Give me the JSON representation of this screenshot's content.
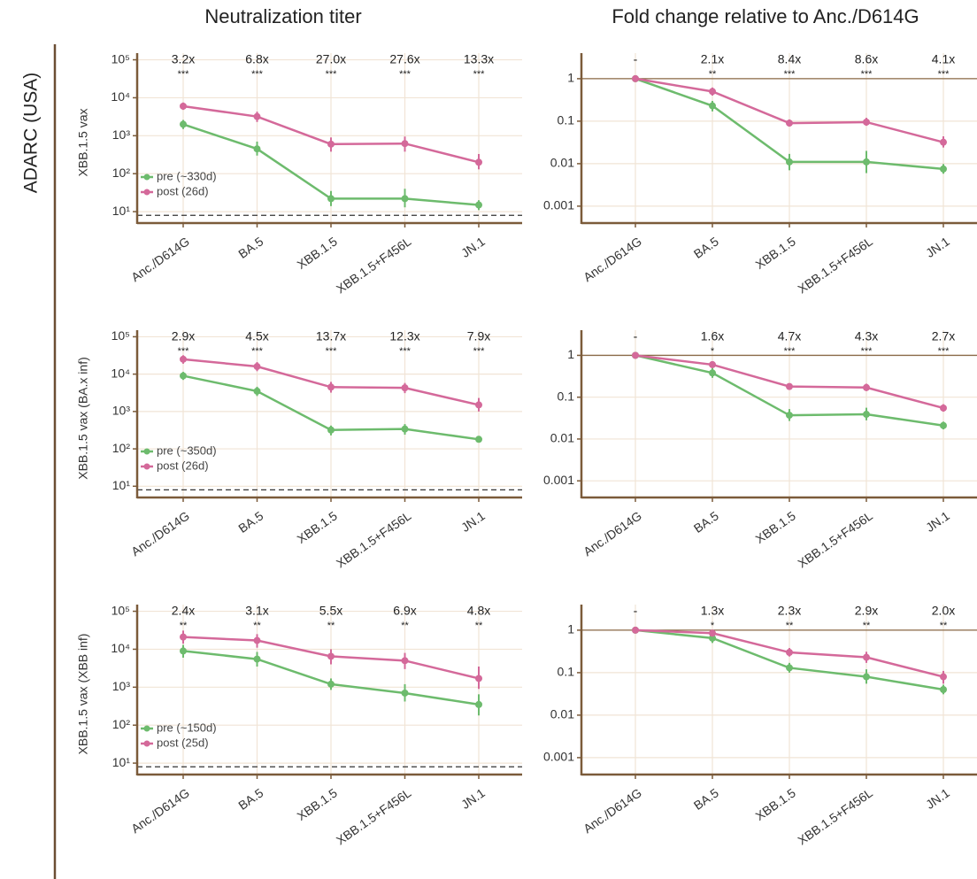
{
  "column_titles": [
    "Neutralization titer",
    "Fold change relative to Anc./D614G"
  ],
  "row_label": "ADARC (USA)",
  "chart_data": [
    {
      "type": "line",
      "y_label": "XBB.1.5 vax",
      "log_scale": true,
      "grid": true,
      "legend": "lower left",
      "categories": [
        "Anc./D614G",
        "BA.5",
        "XBB.1.5",
        "XBB.1.5+F456L",
        "JN.1"
      ],
      "ylim": [
        5,
        150000
      ],
      "yticks": [
        {
          "value": 10,
          "label": "10¹"
        },
        {
          "value": 100,
          "label": "10²"
        },
        {
          "value": 1000,
          "label": "10³"
        },
        {
          "value": 10000,
          "label": "10⁴"
        },
        {
          "value": 100000,
          "label": "10⁵"
        }
      ],
      "reference_line": {
        "value": 8,
        "style": "dashed"
      },
      "annotations": [
        {
          "label": "3.2x",
          "stars": "***"
        },
        {
          "label": "6.8x",
          "stars": "***"
        },
        {
          "label": "27.0x",
          "stars": "***"
        },
        {
          "label": "27.6x",
          "stars": "***"
        },
        {
          "label": "13.3x",
          "stars": "***"
        }
      ],
      "series": [
        {
          "name": "pre (~330d)",
          "color": "#6dbb6d",
          "values": [
            2000,
            450,
            22,
            22,
            15
          ],
          "error_low": [
            1500,
            300,
            14,
            13,
            11
          ],
          "error_high": [
            2600,
            700,
            35,
            40,
            20
          ]
        },
        {
          "name": "post (26d)",
          "color": "#d4699a",
          "values": [
            6000,
            3200,
            600,
            620,
            200
          ],
          "error_low": [
            4800,
            2300,
            380,
            380,
            130
          ],
          "error_high": [
            7500,
            4300,
            900,
            950,
            330
          ]
        }
      ]
    },
    {
      "type": "line",
      "log_scale": true,
      "grid": true,
      "categories": [
        "Anc./D614G",
        "BA.5",
        "XBB.1.5",
        "XBB.1.5+F456L",
        "JN.1"
      ],
      "ylim": [
        0.0004,
        4
      ],
      "yticks": [
        0.001,
        0.01,
        0.1,
        1
      ],
      "reference_line": {
        "value": 1,
        "style": "solid"
      },
      "annotations": [
        {
          "label": "-"
        },
        {
          "label": "2.1x",
          "stars": "**"
        },
        {
          "label": "8.4x",
          "stars": "***"
        },
        {
          "label": "8.6x",
          "stars": "***"
        },
        {
          "label": "4.1x",
          "stars": "***"
        }
      ],
      "series": [
        {
          "color": "#6dbb6d",
          "values": [
            1,
            0.23,
            0.011,
            0.011,
            0.0075
          ],
          "error_low": [
            0.9,
            0.17,
            0.007,
            0.006,
            0.0058
          ],
          "error_high": [
            1.1,
            0.3,
            0.017,
            0.02,
            0.0098
          ]
        },
        {
          "color": "#d4699a",
          "values": [
            1,
            0.5,
            0.09,
            0.095,
            0.032
          ],
          "error_low": [
            0.9,
            0.4,
            0.075,
            0.078,
            0.024
          ],
          "error_high": [
            1.1,
            0.62,
            0.11,
            0.12,
            0.044
          ]
        }
      ]
    },
    {
      "type": "line",
      "y_label": "XBB.1.5 vax (BA.x inf)",
      "log_scale": true,
      "grid": true,
      "legend": "lower left",
      "categories": [
        "Anc./D614G",
        "BA.5",
        "XBB.1.5",
        "XBB.1.5+F456L",
        "JN.1"
      ],
      "ylim": [
        5,
        150000
      ],
      "yticks": [
        {
          "value": 10,
          "label": "10¹"
        },
        {
          "value": 100,
          "label": "10²"
        },
        {
          "value": 1000,
          "label": "10³"
        },
        {
          "value": 10000,
          "label": "10⁴"
        },
        {
          "value": 100000,
          "label": "10⁵"
        }
      ],
      "reference_line": {
        "value": 8,
        "style": "dashed"
      },
      "annotations": [
        {
          "label": "2.9x",
          "stars": "***"
        },
        {
          "label": "4.5x",
          "stars": "***"
        },
        {
          "label": "13.7x",
          "stars": "***"
        },
        {
          "label": "12.3x",
          "stars": "***"
        },
        {
          "label": "7.9x",
          "stars": "***"
        }
      ],
      "series": [
        {
          "name": "pre (~350d)",
          "color": "#6dbb6d",
          "values": [
            9000,
            3500,
            320,
            340,
            180
          ],
          "error_low": [
            7000,
            2600,
            230,
            240,
            150
          ],
          "error_high": [
            11500,
            4600,
            420,
            460,
            220
          ]
        },
        {
          "name": "post (26d)",
          "color": "#d4699a",
          "values": [
            25000,
            16000,
            4500,
            4300,
            1500
          ],
          "error_low": [
            19000,
            12000,
            3200,
            3100,
            1000
          ],
          "error_high": [
            32000,
            21000,
            6200,
            5800,
            2300
          ]
        }
      ]
    },
    {
      "type": "line",
      "log_scale": true,
      "grid": true,
      "categories": [
        "Anc./D614G",
        "BA.5",
        "XBB.1.5",
        "XBB.1.5+F456L",
        "JN.1"
      ],
      "ylim": [
        0.0004,
        4
      ],
      "yticks": [
        0.001,
        0.01,
        0.1,
        1
      ],
      "reference_line": {
        "value": 1,
        "style": "solid"
      },
      "annotations": [
        {
          "label": "-"
        },
        {
          "label": "1.6x",
          "stars": "*"
        },
        {
          "label": "4.7x",
          "stars": "***"
        },
        {
          "label": "4.3x",
          "stars": "***"
        },
        {
          "label": "2.7x",
          "stars": "***"
        }
      ],
      "series": [
        {
          "color": "#6dbb6d",
          "values": [
            1,
            0.38,
            0.037,
            0.039,
            0.021
          ],
          "error_low": [
            0.9,
            0.29,
            0.027,
            0.028,
            0.017
          ],
          "error_high": [
            1.1,
            0.5,
            0.052,
            0.056,
            0.026
          ]
        },
        {
          "color": "#d4699a",
          "values": [
            1,
            0.6,
            0.18,
            0.17,
            0.055
          ],
          "error_low": [
            0.9,
            0.5,
            0.15,
            0.14,
            0.045
          ],
          "error_high": [
            1.1,
            0.72,
            0.21,
            0.21,
            0.068
          ]
        }
      ]
    },
    {
      "type": "line",
      "y_label": "XBB.1.5 vax (XBB inf)",
      "log_scale": true,
      "grid": true,
      "legend": "lower left",
      "categories": [
        "Anc./D614G",
        "BA.5",
        "XBB.1.5",
        "XBB.1.5+F456L",
        "JN.1"
      ],
      "ylim": [
        5,
        150000
      ],
      "yticks": [
        {
          "value": 10,
          "label": "10¹"
        },
        {
          "value": 100,
          "label": "10²"
        },
        {
          "value": 1000,
          "label": "10³"
        },
        {
          "value": 10000,
          "label": "10⁴"
        },
        {
          "value": 100000,
          "label": "10⁵"
        }
      ],
      "reference_line": {
        "value": 8,
        "style": "dashed"
      },
      "annotations": [
        {
          "label": "2.4x",
          "stars": "**"
        },
        {
          "label": "3.1x",
          "stars": "**"
        },
        {
          "label": "5.5x",
          "stars": "**"
        },
        {
          "label": "6.9x",
          "stars": "**"
        },
        {
          "label": "4.8x",
          "stars": "**"
        }
      ],
      "series": [
        {
          "name": "pre (~150d)",
          "color": "#6dbb6d",
          "values": [
            9000,
            5500,
            1200,
            700,
            350
          ],
          "error_low": [
            6000,
            3500,
            850,
            420,
            180
          ],
          "error_high": [
            13000,
            8500,
            1700,
            1200,
            650
          ]
        },
        {
          "name": "post (25d)",
          "color": "#d4699a",
          "values": [
            21000,
            17000,
            6500,
            5000,
            1700
          ],
          "error_low": [
            14000,
            11000,
            4000,
            3000,
            900
          ],
          "error_high": [
            31000,
            25000,
            10000,
            8000,
            3500
          ]
        }
      ]
    },
    {
      "type": "line",
      "log_scale": true,
      "grid": true,
      "categories": [
        "Anc./D614G",
        "BA.5",
        "XBB.1.5",
        "XBB.1.5+F456L",
        "JN.1"
      ],
      "ylim": [
        0.0004,
        4
      ],
      "yticks": [
        0.001,
        0.01,
        0.1,
        1
      ],
      "reference_line": {
        "value": 1,
        "style": "solid"
      },
      "annotations": [
        {
          "label": "-"
        },
        {
          "label": "1.3x",
          "stars": "*"
        },
        {
          "label": "2.3x",
          "stars": "**"
        },
        {
          "label": "2.9x",
          "stars": "**"
        },
        {
          "label": "2.0x",
          "stars": "**"
        }
      ],
      "series": [
        {
          "color": "#6dbb6d",
          "values": [
            1,
            0.65,
            0.13,
            0.08,
            0.04
          ],
          "error_low": [
            0.9,
            0.5,
            0.1,
            0.055,
            0.031
          ],
          "error_high": [
            1.1,
            0.82,
            0.17,
            0.12,
            0.052
          ]
        },
        {
          "color": "#d4699a",
          "values": [
            1,
            0.85,
            0.3,
            0.23,
            0.08
          ],
          "error_low": [
            0.9,
            0.72,
            0.24,
            0.17,
            0.055
          ],
          "error_high": [
            1.1,
            1.0,
            0.38,
            0.31,
            0.11
          ]
        }
      ]
    }
  ]
}
